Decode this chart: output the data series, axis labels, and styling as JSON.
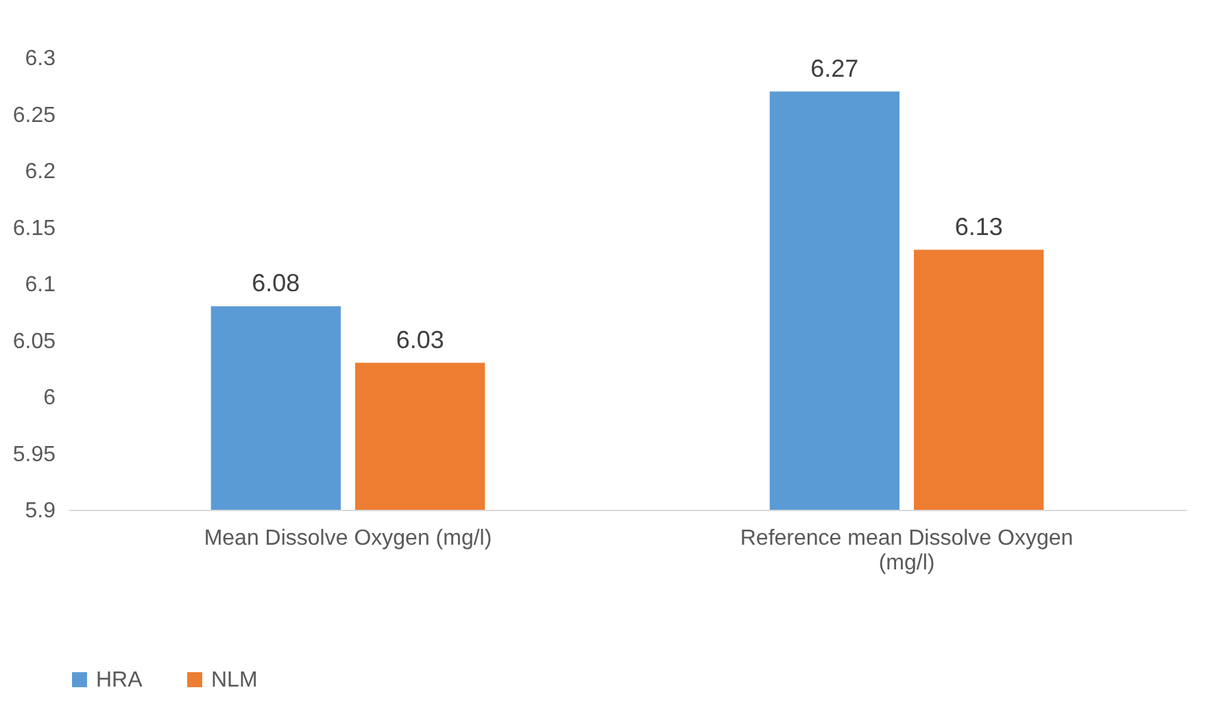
{
  "chart_data": {
    "type": "bar",
    "categories": [
      "Mean Dissolve Oxygen (mg/l)",
      "Reference  mean Dissolve Oxygen (mg/l)"
    ],
    "series": [
      {
        "name": "HRA",
        "color": "#5b9bd5",
        "values": [
          6.08,
          6.27
        ]
      },
      {
        "name": "NLM",
        "color": "#ed7d31",
        "values": [
          6.03,
          6.13
        ]
      }
    ],
    "ylim": [
      5.9,
      6.3
    ],
    "yticks": [
      5.9,
      5.95,
      6,
      6.05,
      6.1,
      6.15,
      6.2,
      6.25,
      6.3
    ],
    "data_labels": true,
    "legend": "bottom",
    "grid": false
  }
}
